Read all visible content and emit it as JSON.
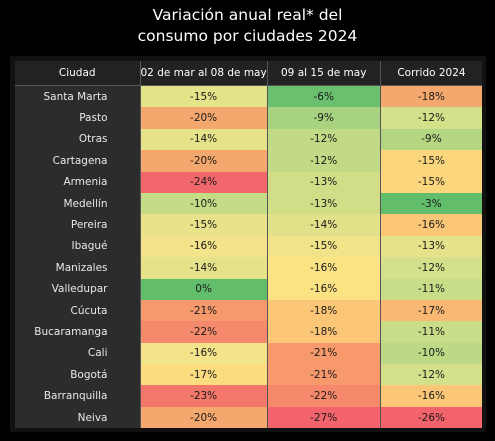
{
  "chart_data": {
    "type": "table",
    "title_lines": [
      "Variación anual real* del",
      "consumo por ciudades 2024"
    ],
    "columns": [
      "Ciudad",
      "02 de mar al 08 de may",
      "09 al 15 de may",
      "Corrido 2024"
    ],
    "rows": [
      {
        "city": "Santa Marta",
        "cells": [
          {
            "v": "-15%",
            "c": "#e3e38a"
          },
          {
            "v": "-6%",
            "c": "#6bbf6e"
          },
          {
            "v": "-18%",
            "c": "#f5a86e"
          }
        ]
      },
      {
        "city": "Pasto",
        "cells": [
          {
            "v": "-20%",
            "c": "#f5a86e"
          },
          {
            "v": "-9%",
            "c": "#a7d27f"
          },
          {
            "v": "-12%",
            "c": "#d4e18a"
          }
        ]
      },
      {
        "city": "Otras",
        "cells": [
          {
            "v": "-14%",
            "c": "#e6e28a"
          },
          {
            "v": "-12%",
            "c": "#c2da85"
          },
          {
            "v": "-9%",
            "c": "#b4d582"
          }
        ]
      },
      {
        "city": "Cartagena",
        "cells": [
          {
            "v": "-20%",
            "c": "#f5a86e"
          },
          {
            "v": "-12%",
            "c": "#c2da85"
          },
          {
            "v": "-15%",
            "c": "#fbd67c"
          }
        ]
      },
      {
        "city": "Armenia",
        "cells": [
          {
            "v": "-24%",
            "c": "#f2676b"
          },
          {
            "v": "-13%",
            "c": "#d2dd88"
          },
          {
            "v": "-15%",
            "c": "#fbd67c"
          }
        ]
      },
      {
        "city": "Medellín",
        "cells": [
          {
            "v": "-10%",
            "c": "#c5dc87"
          },
          {
            "v": "-13%",
            "c": "#d2dd88"
          },
          {
            "v": "-3%",
            "c": "#63be6c"
          }
        ]
      },
      {
        "city": "Pereira",
        "cells": [
          {
            "v": "-15%",
            "c": "#e9e28a"
          },
          {
            "v": "-14%",
            "c": "#e1e18a"
          },
          {
            "v": "-16%",
            "c": "#fbc676"
          }
        ]
      },
      {
        "city": "Ibagué",
        "cells": [
          {
            "v": "-16%",
            "c": "#f3e38a"
          },
          {
            "v": "-15%",
            "c": "#f0e389"
          },
          {
            "v": "-13%",
            "c": "#e5e28a"
          }
        ]
      },
      {
        "city": "Manizales",
        "cells": [
          {
            "v": "-14%",
            "c": "#e6e28a"
          },
          {
            "v": "-16%",
            "c": "#fbe283"
          },
          {
            "v": "-12%",
            "c": "#d4e18a"
          }
        ]
      },
      {
        "city": "Valledupar",
        "cells": [
          {
            "v": "0%",
            "c": "#63be6c"
          },
          {
            "v": "-16%",
            "c": "#fbe283"
          },
          {
            "v": "-11%",
            "c": "#c8dd88"
          }
        ]
      },
      {
        "city": "Cúcuta",
        "cells": [
          {
            "v": "-21%",
            "c": "#f6996c"
          },
          {
            "v": "-18%",
            "c": "#fbc676"
          },
          {
            "v": "-17%",
            "c": "#fbb872"
          }
        ]
      },
      {
        "city": "Bucaramanga",
        "cells": [
          {
            "v": "-22%",
            "c": "#f48a6b"
          },
          {
            "v": "-18%",
            "c": "#fbc676"
          },
          {
            "v": "-11%",
            "c": "#c8dd88"
          }
        ]
      },
      {
        "city": "Cali",
        "cells": [
          {
            "v": "-16%",
            "c": "#f3e38a"
          },
          {
            "v": "-21%",
            "c": "#f8996c"
          },
          {
            "v": "-10%",
            "c": "#bdd986"
          }
        ]
      },
      {
        "city": "Bogotá",
        "cells": [
          {
            "v": "-17%",
            "c": "#fbdd80"
          },
          {
            "v": "-21%",
            "c": "#f8996c"
          },
          {
            "v": "-12%",
            "c": "#d4e18a"
          }
        ]
      },
      {
        "city": "Barranquilla",
        "cells": [
          {
            "v": "-23%",
            "c": "#f3786b"
          },
          {
            "v": "-22%",
            "c": "#f6886b"
          },
          {
            "v": "-16%",
            "c": "#fbc676"
          }
        ]
      },
      {
        "city": "Neiva",
        "cells": [
          {
            "v": "-20%",
            "c": "#f5a86e"
          },
          {
            "v": "-27%",
            "c": "#f2636b"
          },
          {
            "v": "-26%",
            "c": "#f2636b"
          }
        ]
      }
    ]
  }
}
